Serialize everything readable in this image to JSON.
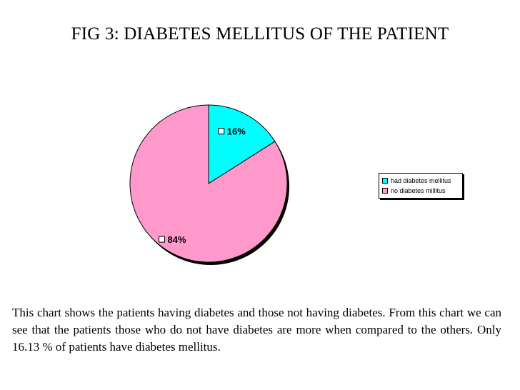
{
  "page": {
    "title": "FIG 3: DIABETES MELLITUS OF THE PATIENT",
    "caption": "This chart shows the patients having diabetes and those not having diabetes. From this chart we can see that the patients those who do not have diabetes are more when compared to the others. Only 16.13 % of patients have diabetes mellitus."
  },
  "chart_data": {
    "type": "pie",
    "title": "FIG 3: DIABETES MELLITUS OF THE PATIENT",
    "categories": [
      "had diabetes mellitus",
      "no diabetes millitus"
    ],
    "values": [
      16,
      84
    ],
    "labels": [
      "16%",
      "84%"
    ],
    "colors": [
      "#00FFFF",
      "#FF99CC"
    ],
    "legend_position": "right"
  }
}
